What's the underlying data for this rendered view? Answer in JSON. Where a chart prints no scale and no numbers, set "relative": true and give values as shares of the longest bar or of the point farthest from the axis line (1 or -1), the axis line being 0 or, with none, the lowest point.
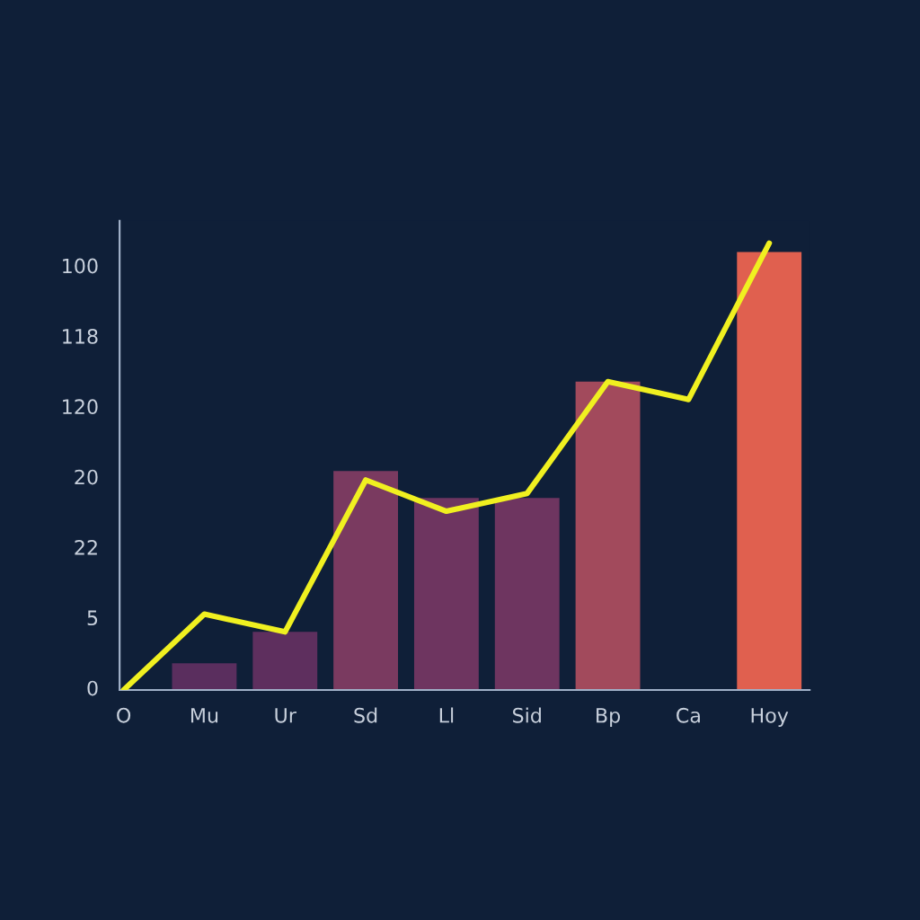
{
  "chart_data": {
    "type": "bar",
    "relative": true,
    "categories": [
      "O",
      "Mu",
      "Ur",
      "Sd",
      "Ll",
      "Sid",
      "Bp",
      "Ca",
      "Hoy"
    ],
    "series": [
      {
        "values": [
          null,
          0.06,
          0.13,
          0.49,
          0.43,
          0.43,
          0.69,
          null,
          0.98
        ],
        "colors": [
          "#5a2e5e",
          "#5a2e5e",
          "#5e2f5e",
          "#7a3a60",
          "#6e3560",
          "#6e3560",
          "#a24a5c",
          "#a24a5c",
          "#e0604f"
        ]
      },
      {
        "type": "line",
        "color": "#f0f020",
        "values": [
          0,
          0.17,
          0.13,
          0.47,
          0.4,
          0.44,
          0.69,
          0.65,
          1.0
        ]
      }
    ],
    "annotations": [
      "0",
      "5",
      "22",
      "20",
      "120",
      "118",
      "100"
    ]
  }
}
